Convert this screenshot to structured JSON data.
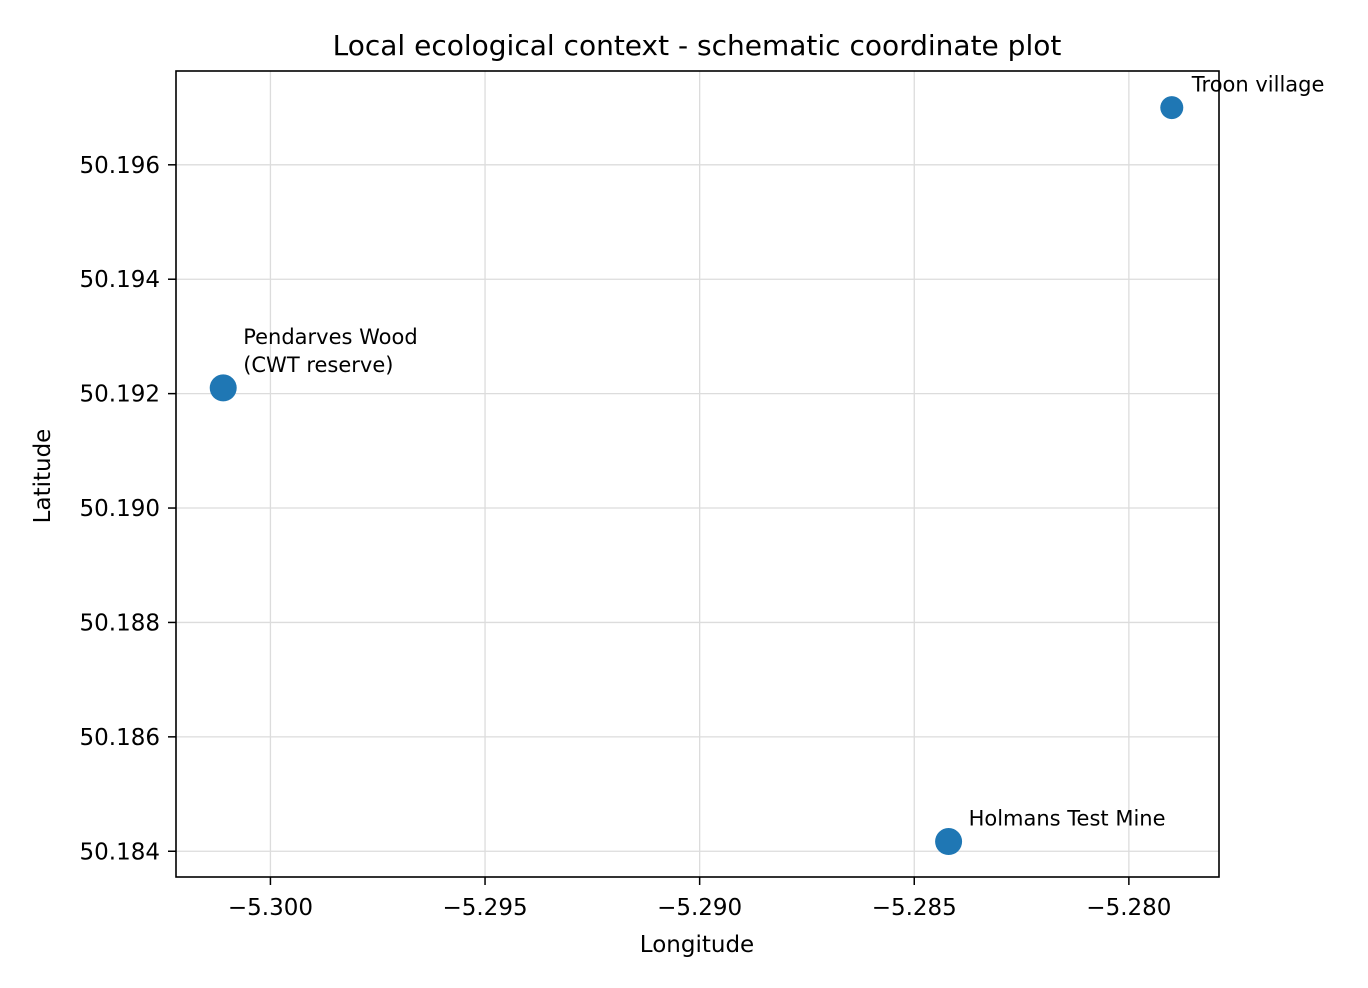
{
  "chart_data": {
    "type": "scatter",
    "title": "Local ecological context - schematic coordinate plot",
    "xlabel": "Longitude",
    "ylabel": "Latitude",
    "xlim": [
      -5.3022,
      -5.2779
    ],
    "ylim": [
      50.18355,
      50.19764
    ],
    "xticks": [
      -5.3,
      -5.295,
      -5.29,
      -5.285,
      -5.28
    ],
    "xtick_labels": [
      "−5.300",
      "−5.295",
      "−5.290",
      "−5.285",
      "−5.280"
    ],
    "yticks": [
      50.184,
      50.186,
      50.188,
      50.19,
      50.192,
      50.194,
      50.196
    ],
    "ytick_labels": [
      "50.184",
      "50.186",
      "50.188",
      "50.190",
      "50.192",
      "50.194",
      "50.196"
    ],
    "grid": true,
    "marker_color": "#1f77b4",
    "points": [
      {
        "label_lines": [
          "Pendarves Wood",
          "(CWT reserve)"
        ],
        "x": -5.3011,
        "y": 50.1921,
        "size": "large"
      },
      {
        "label_lines": [
          "Holmans Test Mine"
        ],
        "x": -5.2842,
        "y": 50.18417,
        "size": "large"
      },
      {
        "label_lines": [
          "Troon village"
        ],
        "x": -5.279,
        "y": 50.197,
        "size": "small"
      }
    ]
  }
}
